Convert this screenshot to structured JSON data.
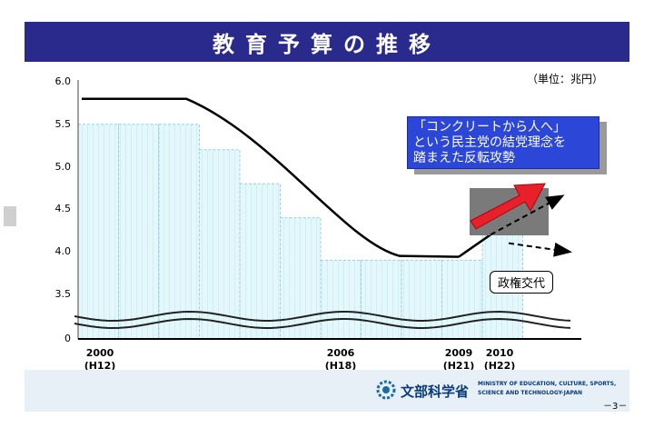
{
  "header": {
    "title": "教育予算の推移"
  },
  "unit_label": "（単位：兆円）",
  "callout": {
    "lines": [
      "「コンクリートから人へ」",
      "という民主党の結党理念を",
      "踏まえた反転攻勢"
    ]
  },
  "regime_label": "政権交代",
  "footer": {
    "org_name": "文部科学省",
    "ministry_lines": [
      "MINISTRY OF EDUCATION, CULTURE, SPORTS,",
      "SCIENCE AND TECHNOLOGY-JAPAN"
    ],
    "page_number": "－3－"
  },
  "colors": {
    "banner": "#2a2a8c",
    "bar_fill": "#e4f8fc",
    "callout_fill": "#2c46d8",
    "arrow": "#e8202a"
  },
  "chart_data": {
    "type": "bar",
    "title": "教育予算の推移",
    "ylabel": "（単位：兆円）",
    "y_ticks": [
      "6.0",
      "5.5",
      "5.0",
      "4.5",
      "4.0",
      "3.5",
      "0"
    ],
    "axis_break": true,
    "x_labels": [
      {
        "year": "2000",
        "era": "(H12)"
      },
      {
        "year": "2006",
        "era": "(H18)"
      },
      {
        "year": "2009",
        "era": "(H21)"
      },
      {
        "year": "2010",
        "era": "(H22)"
      }
    ],
    "bars": [
      5.5,
      5.5,
      5.5,
      5.2,
      4.8,
      4.4,
      3.9,
      3.9,
      3.9,
      3.9,
      4.2
    ],
    "curve": {
      "left_level": 5.8,
      "right_level": 3.95
    },
    "projection": {
      "upward_target": 4.65,
      "flat_target": 4.0
    },
    "legend": "none",
    "grid": false
  }
}
